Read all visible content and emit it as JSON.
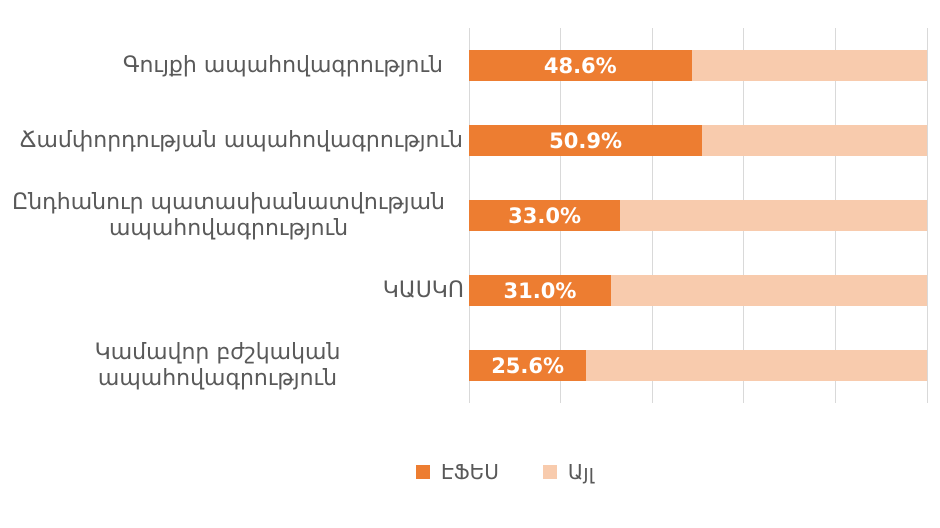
{
  "chart_data": {
    "type": "bar",
    "subtype": "horizontal-stacked-100-percent",
    "categories": [
      "Գույքի ապահովագրություն",
      "Ճամփորդության ապահովագրություն",
      "Ընդհանուր պատասխանատվության\nապահովագրություն",
      "ԿԱՍԿՈ",
      "Կամավոր բժշկական ապահովագրություն"
    ],
    "series": [
      {
        "name": "ԷՖԵՍ",
        "color": "#ED7D31",
        "values": [
          48.6,
          50.9,
          33.0,
          31.0,
          25.6
        ],
        "data_labels": [
          "48.6%",
          "50.9%",
          "33.0%",
          "31.0%",
          "25.6%"
        ]
      },
      {
        "name": "Այլ",
        "color": "#F8CBAD",
        "values": [
          51.4,
          49.1,
          67.0,
          69.0,
          74.4
        ],
        "data_labels": []
      }
    ],
    "xlabel": "",
    "ylabel": "",
    "xlim": [
      0,
      100
    ],
    "gridline_values": [
      0,
      20,
      40,
      60,
      80,
      100
    ],
    "axis_tick_labels_visible": false,
    "grid": true,
    "legend": {
      "position": "bottom",
      "items": [
        {
          "label": "ԷՖԵՍ",
          "color": "#ED7D31"
        },
        {
          "label": "Այլ",
          "color": "#F8CBAD"
        }
      ]
    },
    "colors": {
      "grid": "#D9D9D9",
      "category_label": "#595959",
      "value_label": "#FFFFFF",
      "background": "#FFFFFF"
    }
  }
}
